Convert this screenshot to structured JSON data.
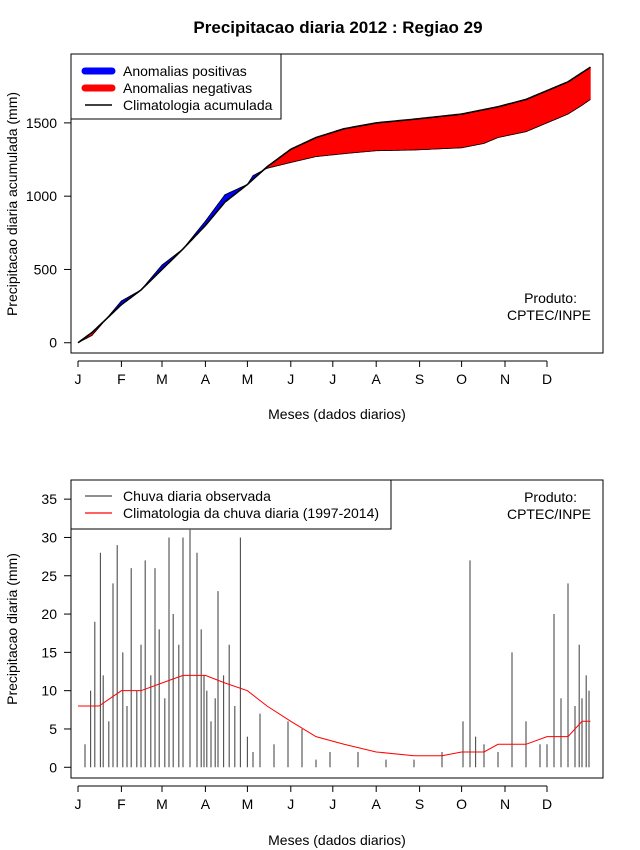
{
  "title": "Precipitacao diaria 2012 : Regiao 29",
  "chart_data": [
    {
      "type": "area",
      "title": "Precipitacao diaria 2012 : Regiao 29",
      "xlabel": "Meses (dados diarios)",
      "ylabel": "Precipitacao diaria acumulada (mm)",
      "x_ticks": [
        "J",
        "F",
        "M",
        "A",
        "M",
        "J",
        "J",
        "A",
        "S",
        "O",
        "N",
        "D"
      ],
      "y_ticks": [
        0,
        500,
        1000,
        1500
      ],
      "xlim": [
        -5,
        375
      ],
      "ylim": [
        -70,
        1970
      ],
      "legend_position": "top-left",
      "legend": [
        "Anomalias positivas",
        "Anomalias negativas",
        "Climatologia acumulada"
      ],
      "annotation": [
        "Produto:",
        "CPTEC/INPE"
      ],
      "series": [
        {
          "name": "Climatologia acumulada",
          "color": "#000000",
          "x": [
            0,
            10,
            20,
            31,
            45,
            60,
            75,
            91,
            105,
            121,
            135,
            152,
            170,
            190,
            213,
            240,
            274,
            300,
            320,
            335,
            350,
            366
          ],
          "values": [
            0,
            70,
            160,
            260,
            360,
            500,
            640,
            800,
            960,
            1080,
            1200,
            1320,
            1400,
            1460,
            1500,
            1525,
            1560,
            1610,
            1660,
            1720,
            1780,
            1880
          ]
        },
        {
          "name": "Precipitacao acumulada observada",
          "x": [
            0,
            10,
            20,
            31,
            45,
            60,
            75,
            91,
            105,
            121,
            125,
            135,
            152,
            170,
            190,
            213,
            240,
            274,
            290,
            300,
            320,
            335,
            350,
            360,
            366
          ],
          "values": [
            0,
            50,
            160,
            285,
            360,
            530,
            640,
            830,
            1010,
            1080,
            1140,
            1190,
            1230,
            1270,
            1290,
            1310,
            1315,
            1330,
            1360,
            1400,
            1440,
            1500,
            1560,
            1620,
            1660
          ]
        }
      ]
    },
    {
      "type": "bar",
      "xlabel": "Meses (dados diarios)",
      "ylabel": "Precipitacao diaria (mm)",
      "x_ticks": [
        "J",
        "F",
        "M",
        "A",
        "M",
        "J",
        "J",
        "A",
        "S",
        "O",
        "N",
        "D"
      ],
      "y_ticks": [
        0,
        5,
        10,
        15,
        20,
        25,
        30,
        35
      ],
      "xlim": [
        -5,
        375
      ],
      "ylim": [
        -1.4,
        37.5
      ],
      "legend_position": "top-left",
      "legend": [
        "Chuva diaria observada",
        "Climatologia da chuva diaria (1997-2014)"
      ],
      "annotation": [
        "Produto:",
        "CPTEC/INPE"
      ],
      "series": [
        {
          "name": "Chuva diaria observada",
          "color": "#4d4d4d",
          "x": [
            5,
            9,
            12,
            16,
            18,
            22,
            25,
            28,
            32,
            35,
            38,
            42,
            45,
            48,
            52,
            55,
            58,
            62,
            65,
            68,
            72,
            75,
            80,
            85,
            88,
            90,
            92,
            95,
            98,
            100,
            104,
            108,
            112,
            116,
            121,
            125,
            130,
            140,
            150,
            160,
            170,
            180,
            200,
            220,
            240,
            260,
            275,
            280,
            284,
            290,
            300,
            310,
            320,
            330,
            335,
            340,
            345,
            350,
            355,
            358,
            360,
            363,
            365
          ],
          "values": [
            3,
            10,
            19,
            28,
            12,
            6,
            24,
            29,
            15,
            8,
            26,
            10,
            16,
            27,
            12,
            26,
            18,
            9,
            30,
            20,
            16,
            30,
            31,
            28,
            18,
            12,
            10,
            6,
            9,
            23,
            12,
            16,
            8,
            30,
            4,
            2,
            7,
            3,
            6,
            5,
            1,
            2,
            2,
            1,
            1,
            2,
            6,
            27,
            4,
            3,
            2,
            15,
            6,
            3,
            3,
            20,
            9,
            24,
            8,
            16,
            9,
            12,
            10
          ]
        },
        {
          "name": "Climatologia da chuva diaria (1997-2014)",
          "color": "#ff0000",
          "x": [
            0,
            15,
            31,
            45,
            60,
            75,
            91,
            105,
            121,
            135,
            152,
            170,
            190,
            213,
            240,
            260,
            274,
            290,
            300,
            320,
            335,
            350,
            360,
            366
          ],
          "values": [
            8,
            8,
            10,
            10,
            11,
            12,
            12,
            11,
            10,
            8,
            6,
            4,
            3,
            2,
            1.5,
            1.5,
            2,
            2,
            3,
            3,
            4,
            4,
            6,
            6
          ]
        }
      ]
    }
  ]
}
